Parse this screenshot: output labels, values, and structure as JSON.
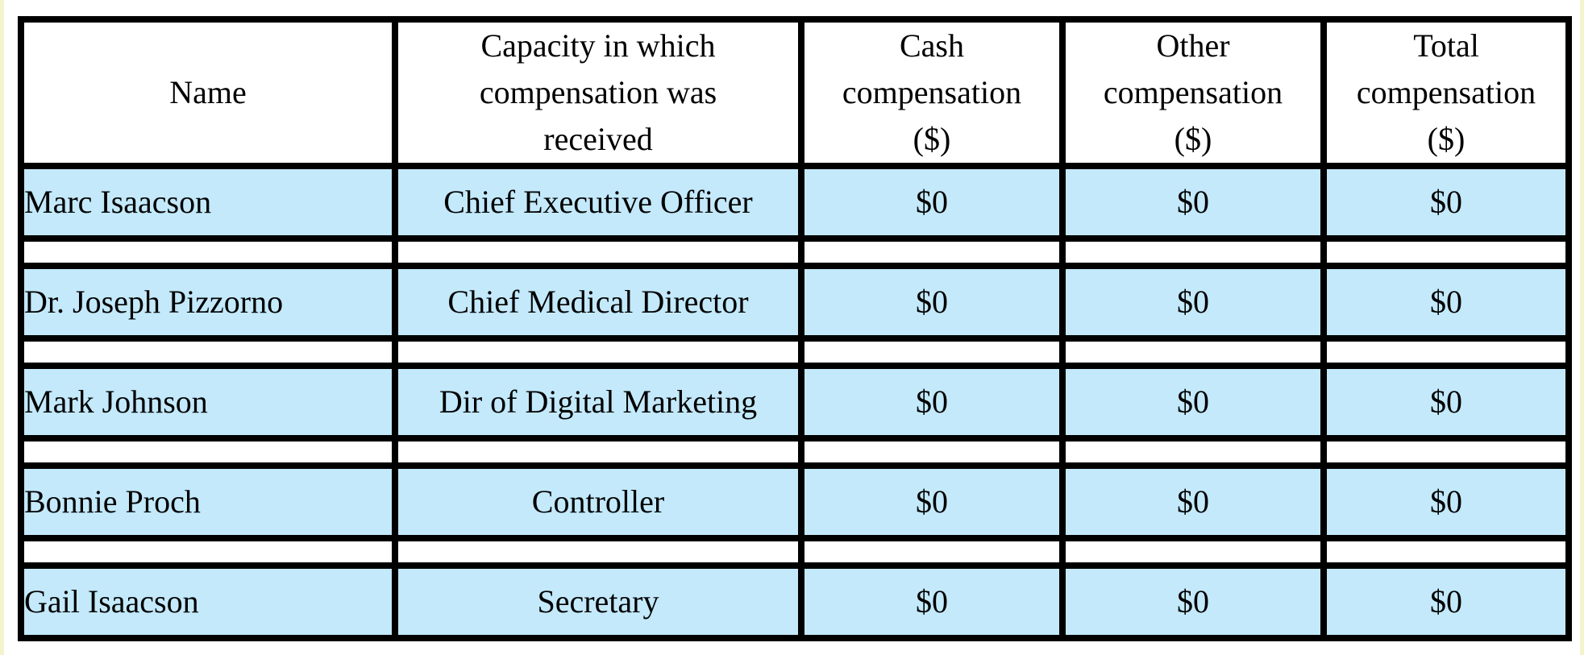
{
  "table": {
    "headers": {
      "name": "Name",
      "capacity": [
        "Capacity in which",
        "compensation was",
        "received"
      ],
      "cash": [
        "Cash",
        "compensation",
        "($)"
      ],
      "other": [
        "Other",
        "compensation",
        "($)"
      ],
      "total": [
        "Total",
        "compensation",
        "($)"
      ]
    },
    "rows": [
      {
        "name": "Marc Isaacson",
        "capacity": "Chief Executive Officer",
        "cash": "$0",
        "other": "$0",
        "total": "$0"
      },
      {
        "name": "Dr. Joseph Pizzorno",
        "capacity": "Chief Medical Director",
        "cash": "$0",
        "other": "$0",
        "total": "$0"
      },
      {
        "name": "Mark Johnson",
        "capacity": "Dir of Digital Marketing",
        "cash": "$0",
        "other": "$0",
        "total": "$0"
      },
      {
        "name": "Bonnie Proch",
        "capacity": "Controller",
        "cash": "$0",
        "other": "$0",
        "total": "$0"
      },
      {
        "name": "Gail Isaacson",
        "capacity": "Secretary",
        "cash": "$0",
        "other": "$0",
        "total": "$0"
      }
    ]
  },
  "colors": {
    "row_fill": "#c3e9fb",
    "grid": "#000000",
    "page_edge": "#f4f3cc"
  }
}
